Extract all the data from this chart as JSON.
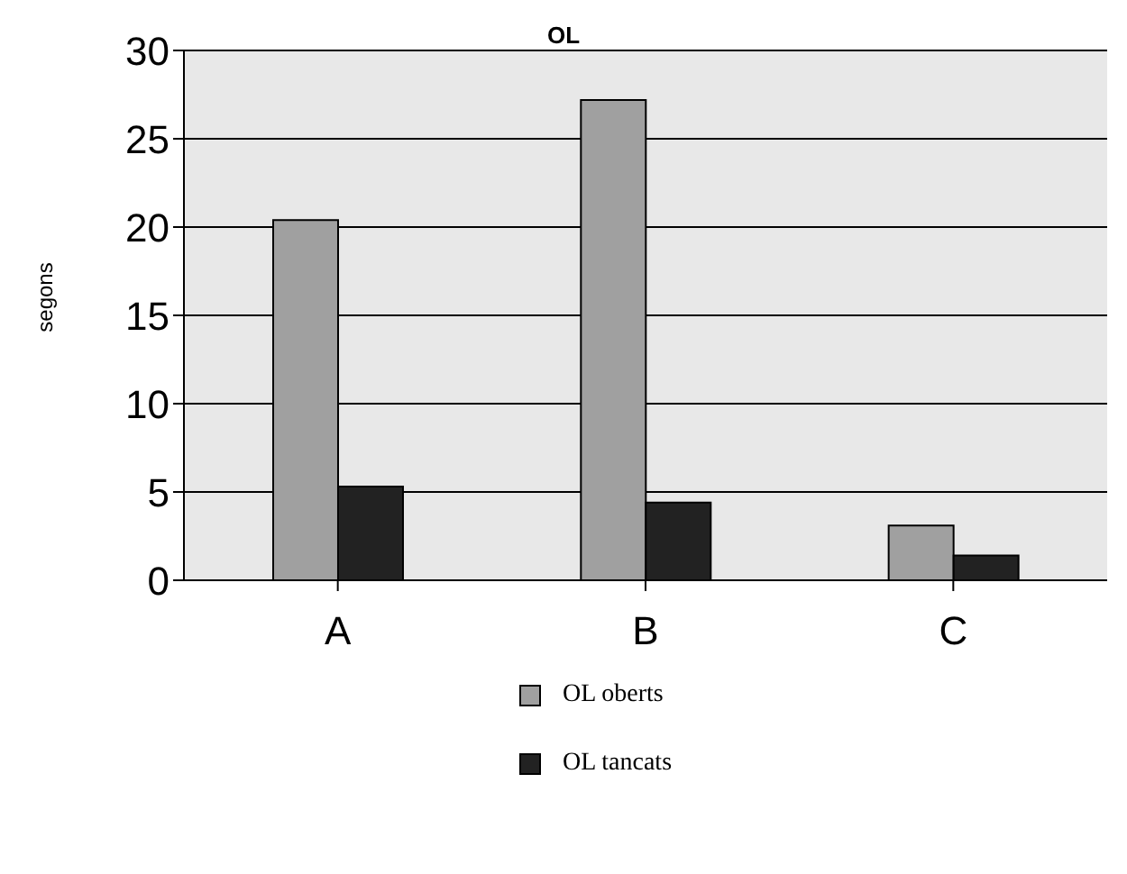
{
  "chart_data": {
    "type": "bar",
    "title": "OL",
    "ylabel": "segons",
    "categories": [
      "A",
      "B",
      "C"
    ],
    "series": [
      {
        "name": "OL oberts",
        "color": "#a0a0a0",
        "values": [
          20.4,
          27.2,
          3.1
        ]
      },
      {
        "name": "OL tancats",
        "color": "#222222",
        "values": [
          5.3,
          4.4,
          1.4
        ]
      }
    ],
    "ylim": [
      0,
      30
    ],
    "yticks": [
      0,
      5,
      10,
      15,
      20,
      25,
      30
    ],
    "grid": "y",
    "legend": "bottom"
  }
}
